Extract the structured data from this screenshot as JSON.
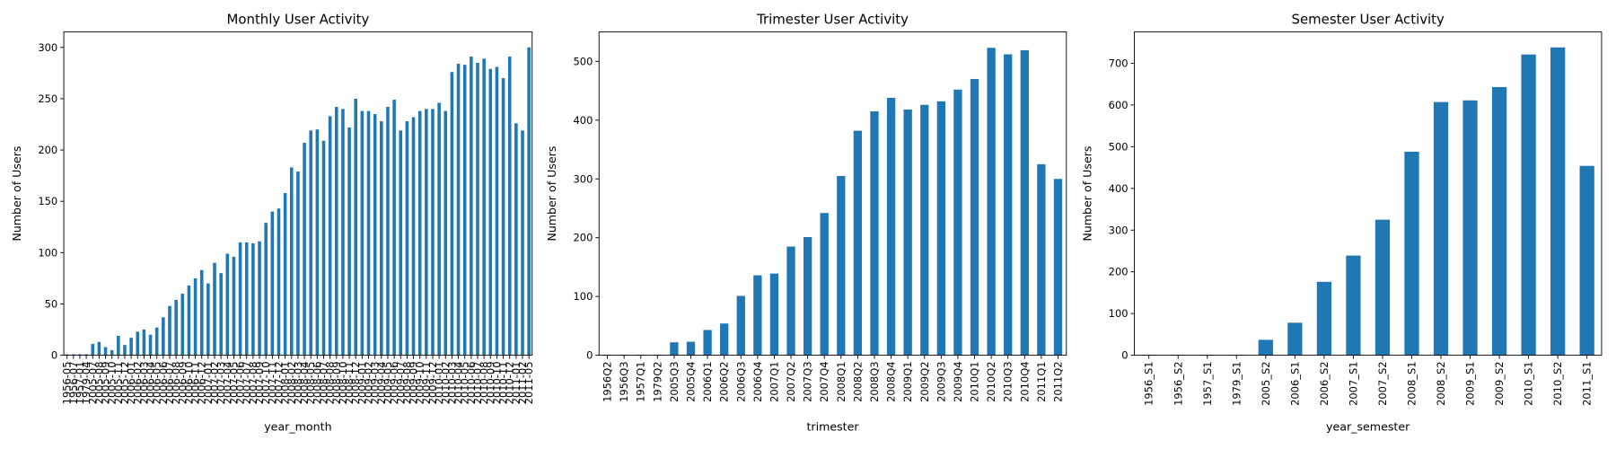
{
  "chart_data": [
    {
      "type": "bar",
      "title": "Monthly User Activity",
      "xlabel": "year_month",
      "ylabel": "Number of Users",
      "color": "#1f77b4",
      "categories": [
        "1956-05",
        "1956-07",
        "1957-01",
        "1979-04",
        "2005-07",
        "2005-08",
        "2005-09",
        "2005-10",
        "2005-11",
        "2005-12",
        "2006-01",
        "2006-02",
        "2006-03",
        "2006-04",
        "2006-05",
        "2006-06",
        "2006-07",
        "2006-08",
        "2006-09",
        "2006-10",
        "2006-11",
        "2006-12",
        "2007-01",
        "2007-02",
        "2007-03",
        "2007-04",
        "2007-05",
        "2007-06",
        "2007-07",
        "2007-08",
        "2007-09",
        "2007-10",
        "2007-11",
        "2007-12",
        "2008-01",
        "2008-02",
        "2008-03",
        "2008-04",
        "2008-05",
        "2008-06",
        "2008-07",
        "2008-08",
        "2008-09",
        "2008-10",
        "2008-11",
        "2008-12",
        "2009-01",
        "2009-02",
        "2009-03",
        "2009-04",
        "2009-05",
        "2009-06",
        "2009-07",
        "2009-08",
        "2009-09",
        "2009-10",
        "2009-11",
        "2009-12",
        "2010-01",
        "2010-02",
        "2010-03",
        "2010-04",
        "2010-05",
        "2010-06",
        "2010-07",
        "2010-08",
        "2010-09",
        "2010-10",
        "2010-11",
        "2010-12",
        "2011-01",
        "2011-02",
        "2011-05"
      ],
      "values": [
        1,
        1,
        1,
        1,
        11,
        13,
        8,
        5,
        19,
        10,
        17,
        23,
        25,
        20,
        27,
        37,
        48,
        54,
        60,
        68,
        75,
        83,
        70,
        90,
        80,
        99,
        96,
        110,
        110,
        109,
        111,
        129,
        140,
        143,
        158,
        183,
        179,
        207,
        219,
        220,
        209,
        233,
        242,
        240,
        222,
        250,
        238,
        238,
        235,
        228,
        242,
        249,
        219,
        228,
        232,
        238,
        240,
        240,
        246,
        238,
        276,
        284,
        283,
        291,
        285,
        289,
        279,
        281,
        270,
        291,
        226,
        219,
        300
      ],
      "ylim": [
        0,
        315
      ],
      "yticks": [
        0,
        50,
        100,
        150,
        200,
        250,
        300
      ]
    },
    {
      "type": "bar",
      "title": "Trimester User Activity",
      "xlabel": "trimester",
      "ylabel": "Number of Users",
      "color": "#1f77b4",
      "categories": [
        "1956Q2",
        "1956Q3",
        "1957Q1",
        "1979Q2",
        "2005Q3",
        "2005Q4",
        "2006Q1",
        "2006Q2",
        "2006Q3",
        "2006Q4",
        "2007Q1",
        "2007Q2",
        "2007Q3",
        "2007Q4",
        "2008Q1",
        "2008Q2",
        "2008Q3",
        "2008Q4",
        "2009Q1",
        "2009Q2",
        "2009Q3",
        "2009Q4",
        "2010Q1",
        "2010Q2",
        "2010Q3",
        "2010Q4",
        "2011Q1",
        "2011Q2"
      ],
      "values": [
        1,
        1,
        1,
        1,
        22,
        23,
        43,
        54,
        101,
        136,
        139,
        185,
        201,
        242,
        305,
        382,
        415,
        438,
        418,
        426,
        432,
        452,
        470,
        523,
        512,
        519,
        325,
        300
      ],
      "ylim": [
        0,
        550
      ],
      "yticks": [
        0,
        100,
        200,
        300,
        400,
        500
      ]
    },
    {
      "type": "bar",
      "title": "Semester User Activity",
      "xlabel": "year_semester",
      "ylabel": "Number of Users",
      "color": "#1f77b4",
      "categories": [
        "1956_S1",
        "1956_S2",
        "1957_S1",
        "1979_S1",
        "2005_S2",
        "2006_S1",
        "2006_S2",
        "2007_S1",
        "2007_S2",
        "2008_S1",
        "2008_S2",
        "2009_S1",
        "2009_S2",
        "2010_S1",
        "2010_S2",
        "2011_S1"
      ],
      "values": [
        1,
        1,
        1,
        1,
        37,
        78,
        176,
        239,
        325,
        488,
        607,
        611,
        643,
        721,
        738,
        454
      ],
      "ylim": [
        0,
        775
      ],
      "yticks": [
        0,
        100,
        200,
        300,
        400,
        500,
        600,
        700
      ]
    }
  ]
}
